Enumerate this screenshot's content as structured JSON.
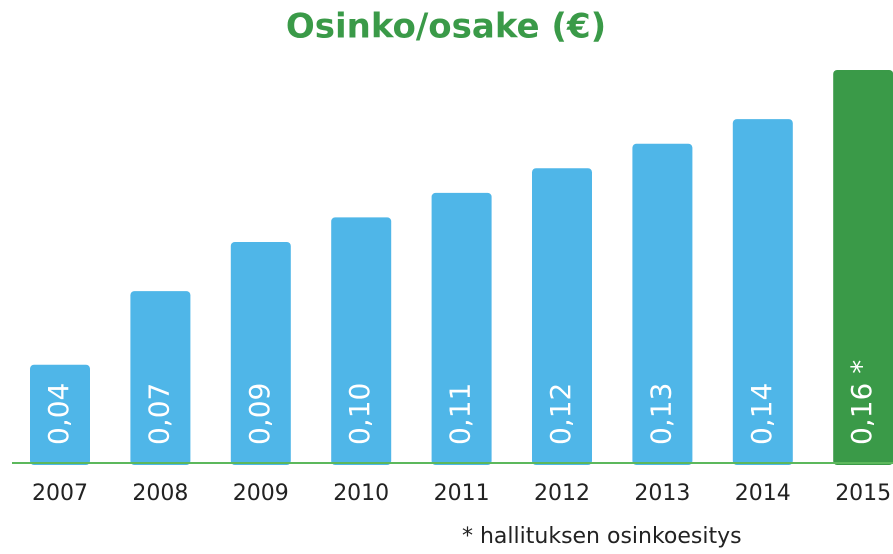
{
  "chart_data": {
    "type": "bar",
    "title": "Osinko/osake (€)",
    "categories": [
      "2007",
      "2008",
      "2009",
      "2010",
      "2011",
      "2012",
      "2013",
      "2014",
      "2015"
    ],
    "values": [
      0.04,
      0.07,
      0.09,
      0.1,
      0.11,
      0.12,
      0.13,
      0.14,
      0.16
    ],
    "value_labels": [
      "0,04",
      "0,07",
      "0,09",
      "0,10",
      "0,11",
      "0,12",
      "0,13",
      "0,14",
      "0,16 *"
    ],
    "colors": [
      "#4fb6e8",
      "#4fb6e8",
      "#4fb6e8",
      "#4fb6e8",
      "#4fb6e8",
      "#4fb6e8",
      "#4fb6e8",
      "#4fb6e8",
      "#3a9a48"
    ],
    "footnote": "* hallituksen osinkoesitys"
  }
}
